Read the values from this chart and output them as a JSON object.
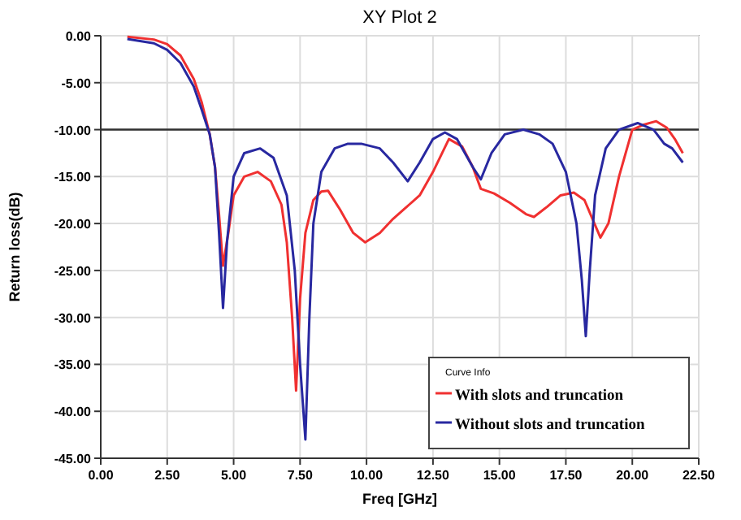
{
  "chart_data": {
    "type": "line",
    "title": "XY Plot 2",
    "xlabel": "Freq [GHz]",
    "ylabel": "Return loss(dB)",
    "legend_title": "Curve Info",
    "legend": "bottom right",
    "grid": true,
    "line_style": "solid",
    "xlim": [
      0,
      22.5
    ],
    "ylim": [
      -45,
      0
    ],
    "xticks": [
      {
        "value": 0,
        "label": "0.00"
      },
      {
        "value": 2.5,
        "label": "2.50"
      },
      {
        "value": 5,
        "label": "5.00"
      },
      {
        "value": 7.5,
        "label": "7.50"
      },
      {
        "value": 10,
        "label": "10.00"
      },
      {
        "value": 12.5,
        "label": "12.50"
      },
      {
        "value": 15,
        "label": "15.00"
      },
      {
        "value": 17.5,
        "label": "17.50"
      },
      {
        "value": 20,
        "label": "20.00"
      },
      {
        "value": 22.5,
        "label": "22.50"
      }
    ],
    "yticks": [
      {
        "value": 0,
        "label": "0.00"
      },
      {
        "value": -5,
        "label": "-5.00"
      },
      {
        "value": -10,
        "label": "-10.00"
      },
      {
        "value": -15,
        "label": "-15.00"
      },
      {
        "value": -20,
        "label": "-20.00"
      },
      {
        "value": -25,
        "label": "-25.00"
      },
      {
        "value": -30,
        "label": "-30.00"
      },
      {
        "value": -35,
        "label": "-35.00"
      },
      {
        "value": -40,
        "label": "-40.00"
      },
      {
        "value": -45,
        "label": "-45.00"
      }
    ],
    "ref_lines": [
      {
        "axis": "y",
        "value": -10,
        "color": "#303030"
      }
    ],
    "series": [
      {
        "name": "With slots and truncation",
        "color": "#f03030",
        "x": [
          1,
          2,
          2.5,
          3,
          3.5,
          3.8,
          4.1,
          4.3,
          4.45,
          4.6,
          4.8,
          5.0,
          5.4,
          5.9,
          6.4,
          6.8,
          7.0,
          7.2,
          7.35,
          7.5,
          7.7,
          8.0,
          8.3,
          8.55,
          9.0,
          9.5,
          9.95,
          10.5,
          11.0,
          11.6,
          12.0,
          12.5,
          13.1,
          13.6,
          14.0,
          14.3,
          14.8,
          15.4,
          16.0,
          16.3,
          16.8,
          17.3,
          17.8,
          18.2,
          18.5,
          18.8,
          19.1,
          19.5,
          20.0,
          20.4,
          20.9,
          21.3,
          21.6,
          21.9
        ],
        "values": [
          -0.1,
          -0.4,
          -0.9,
          -2.1,
          -4.6,
          -7.1,
          -10.5,
          -14,
          -19,
          -24.5,
          -21,
          -17,
          -15,
          -14.5,
          -15.5,
          -18,
          -22,
          -30,
          -37.8,
          -28,
          -21,
          -17.5,
          -16.6,
          -16.5,
          -18.5,
          -21,
          -22,
          -21,
          -19.5,
          -18,
          -17,
          -14.5,
          -11,
          -11.8,
          -14,
          -16.3,
          -16.8,
          -17.8,
          -19,
          -19.3,
          -18.2,
          -17,
          -16.7,
          -17.5,
          -19.5,
          -21.5,
          -20,
          -15,
          -10,
          -9.5,
          -9.1,
          -9.8,
          -11,
          -12.5
        ]
      },
      {
        "name": "Without slots and truncation",
        "color": "#2828a0",
        "x": [
          1,
          2,
          2.5,
          3,
          3.5,
          3.8,
          4.1,
          4.3,
          4.45,
          4.6,
          4.75,
          5.0,
          5.4,
          6.0,
          6.5,
          7.0,
          7.3,
          7.5,
          7.7,
          7.85,
          8.0,
          8.3,
          8.8,
          9.3,
          9.8,
          10.5,
          11.0,
          11.55,
          12.0,
          12.5,
          12.95,
          13.4,
          14.0,
          14.3,
          14.7,
          15.2,
          15.9,
          16.5,
          17.0,
          17.5,
          17.9,
          18.1,
          18.25,
          18.4,
          18.6,
          19.0,
          19.5,
          20.2,
          20.8,
          21.2,
          21.5,
          21.9
        ],
        "values": [
          -0.35,
          -0.8,
          -1.5,
          -2.9,
          -5.4,
          -7.9,
          -10.5,
          -14,
          -21,
          -29,
          -22,
          -15,
          -12.5,
          -12,
          -13,
          -17,
          -25,
          -35,
          -43,
          -30,
          -20,
          -14.5,
          -12,
          -11.5,
          -11.5,
          -12,
          -13.5,
          -15.5,
          -13.5,
          -11,
          -10.3,
          -11,
          -14,
          -15.3,
          -12.5,
          -10.5,
          -10,
          -10.5,
          -11.5,
          -14.5,
          -20,
          -26,
          -32,
          -25,
          -17,
          -12,
          -10,
          -9.3,
          -10,
          -11.5,
          -12,
          -13.5
        ]
      }
    ]
  }
}
